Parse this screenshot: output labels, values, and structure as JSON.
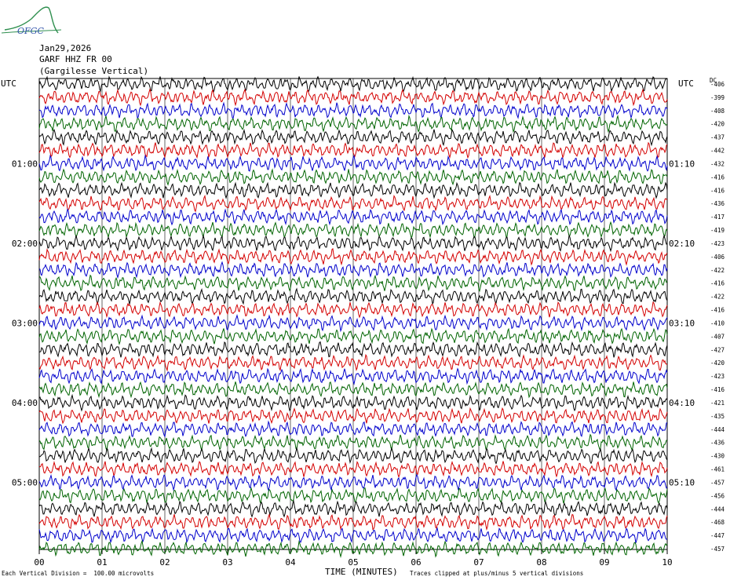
{
  "header": {
    "logo_text": "OFGC",
    "date": "Jan29,2026",
    "station": "GARF HHZ FR 00",
    "location": "(Gargilesse Vertical)"
  },
  "left_axis_label": "UTC",
  "right_axis_label": "UTC",
  "dc_label": "DC",
  "footer": {
    "scale_note": "Each Vertical Division =  100.00 microvolts",
    "x_axis_title": "TIME (MINUTES)",
    "clip_note": "Traces clipped at plus/minus 5 vertical divisions"
  },
  "chart_data": {
    "type": "line",
    "title": "",
    "xlabel": "TIME (MINUTES)",
    "x_range": [
      0,
      10
    ],
    "x_ticks": [
      "00",
      "01",
      "02",
      "03",
      "04",
      "05",
      "06",
      "07",
      "08",
      "09",
      "10"
    ],
    "left_hour_labels": [
      "01:00",
      "02:00",
      "03:00",
      "04:00",
      "05:00"
    ],
    "right_hour_labels": [
      "01:10",
      "02:10",
      "03:10",
      "04:10",
      "05:10"
    ],
    "trace_colors": [
      "#000000",
      "#d40000",
      "#0000cc",
      "#006400"
    ],
    "trace_count": 36,
    "grid_vertical": true,
    "dc_offsets": [
      "-406",
      "-399",
      "-408",
      "-420",
      "-437",
      "-442",
      "-432",
      "-416",
      "-416",
      "-436",
      "-417",
      "-419",
      "-423",
      "-406",
      "-422",
      "-416",
      "-422",
      "-416",
      "-410",
      "-407",
      "-427",
      "-420",
      "-423",
      "-416",
      "-421",
      "-435",
      "-444",
      "-436",
      "-430",
      "-461",
      "-457",
      "-456",
      "-444",
      "-468",
      "-447",
      "-457"
    ]
  }
}
